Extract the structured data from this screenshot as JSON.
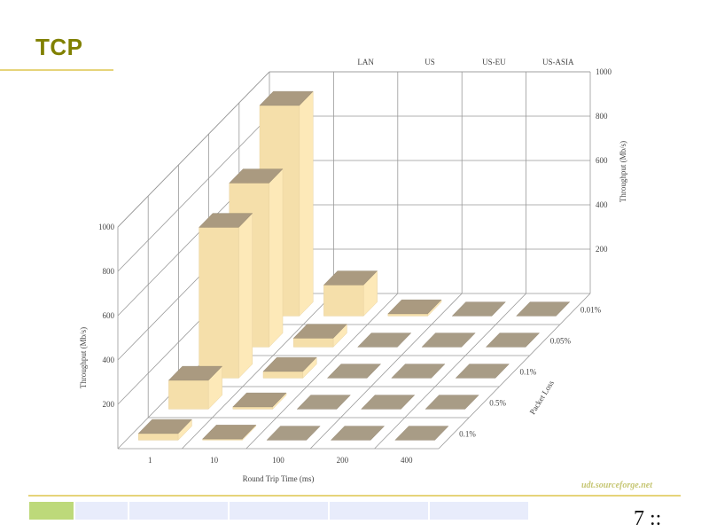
{
  "slide": {
    "title": "TCP",
    "footer_link": "udt.sourceforge.net",
    "page_number": "7 ::"
  },
  "colors": {
    "title": "#808000",
    "accent_line": "#e6d47a",
    "bar_front": "#f5dfaa",
    "bar_side": "#fde9b8",
    "bar_top": "#aa9a80",
    "zero_tile": "#a89c86",
    "grid": "#999999",
    "footer_first_segment": "#bdd97a",
    "footer_segment": "#e8ecfb"
  },
  "chart_data": {
    "type": "bar3d",
    "title": "",
    "x_label": "Round Trip Time (ms)",
    "x_categories": [
      "1",
      "10",
      "100",
      "200",
      "400"
    ],
    "back_wall_categories": [
      "LAN",
      "US",
      "US-EU",
      "US-ASIA"
    ],
    "depth_label": "Packet Loss",
    "depth_categories": [
      "0.01%",
      "0.05%",
      "0.1%",
      "0.5%",
      "0.1%"
    ],
    "y_label_left": "Throughput (Mb/s)",
    "y_label_right": "Throughput (Mb/s)",
    "y_ticks_left": [
      "200",
      "400",
      "600",
      "800",
      "1000"
    ],
    "y_ticks_right": [
      "200",
      "400",
      "600",
      "800",
      "1000"
    ],
    "ylim": [
      0,
      1000
    ],
    "values": [
      [
        950,
        140,
        10,
        0,
        0
      ],
      [
        740,
        40,
        0,
        0,
        0
      ],
      [
        680,
        30,
        0,
        0,
        0
      ],
      [
        130,
        10,
        0,
        0,
        0
      ],
      [
        30,
        5,
        0,
        0,
        0
      ]
    ]
  }
}
